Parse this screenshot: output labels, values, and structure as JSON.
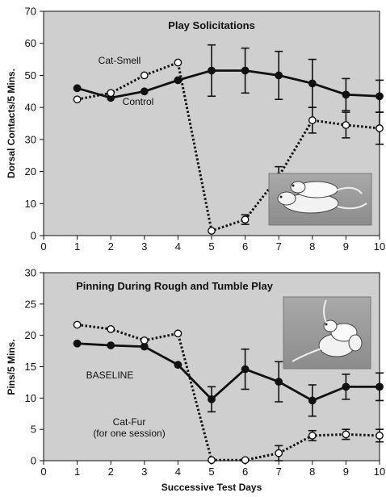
{
  "chart_data": [
    {
      "type": "line",
      "title": "Play Solicitations",
      "ylabel": "Dorsal Contacts/5 Mins.",
      "xlabel": "",
      "xlim": [
        0,
        10
      ],
      "ylim": [
        0,
        70
      ],
      "x_ticks": [
        "0",
        "1",
        "2",
        "3",
        "4",
        "5",
        "6",
        "7",
        "8",
        "9",
        "10"
      ],
      "y_ticks": [
        "0",
        "10",
        "20",
        "30",
        "40",
        "50",
        "60",
        "70"
      ],
      "grid": false,
      "series": [
        {
          "name": "Control",
          "style": "solid",
          "marker": "filled-circle",
          "x": [
            1,
            2,
            3,
            4,
            5,
            6,
            7,
            8,
            9,
            10
          ],
          "y": [
            46,
            43,
            45,
            48.5,
            51.5,
            51.5,
            50,
            47.5,
            44,
            43.5
          ],
          "err": [
            0,
            0,
            0,
            0,
            8,
            7,
            7.5,
            7.5,
            5,
            5
          ]
        },
        {
          "name": "Cat-Smell",
          "style": "dotted",
          "marker": "open-circle",
          "x": [
            1,
            2,
            3,
            4,
            5,
            6,
            7,
            8,
            9,
            10
          ],
          "y": [
            42.5,
            44.5,
            50,
            54,
            1.5,
            5,
            18.5,
            36,
            34.5,
            33.5
          ],
          "err": [
            0,
            0,
            0,
            0,
            0,
            1.5,
            3,
            4,
            4,
            5
          ]
        }
      ],
      "image_icon": "rats-playing-icon"
    },
    {
      "type": "line",
      "title": "Pinning During Rough and Tumble Play",
      "ylabel": "Pins/5 Mins.",
      "xlabel": "Successive Test Days",
      "xlim": [
        0,
        10
      ],
      "ylim": [
        0,
        30
      ],
      "x_ticks": [
        "0",
        "1",
        "2",
        "3",
        "4",
        "5",
        "6",
        "7",
        "8",
        "9",
        "10"
      ],
      "y_ticks": [
        "0",
        "5",
        "10",
        "15",
        "20",
        "25",
        "30"
      ],
      "grid": false,
      "series": [
        {
          "name": "BASELINE",
          "style": "solid",
          "marker": "filled-circle",
          "x": [
            1,
            2,
            3,
            4,
            5,
            6,
            7,
            8,
            9,
            10
          ],
          "y": [
            18.7,
            18.4,
            18.2,
            15.3,
            9.8,
            14.6,
            12.6,
            9.6,
            11.8,
            11.8
          ],
          "err": [
            0,
            0,
            0,
            0,
            2,
            3.2,
            3.2,
            2.5,
            2,
            2.2
          ]
        },
        {
          "name": "Cat-Fur\n(for one session)",
          "style": "dotted",
          "marker": "open-circle",
          "x": [
            1,
            2,
            3,
            4,
            5,
            6,
            7,
            8,
            9,
            10
          ],
          "y": [
            21.7,
            21.0,
            19.2,
            20.3,
            0.1,
            0.1,
            1.2,
            4.0,
            4.2,
            4.0
          ],
          "err": [
            0,
            0,
            0,
            0,
            0,
            0,
            1.2,
            0.8,
            0.8,
            1
          ]
        }
      ],
      "image_icon": "rats-pinning-icon"
    }
  ]
}
